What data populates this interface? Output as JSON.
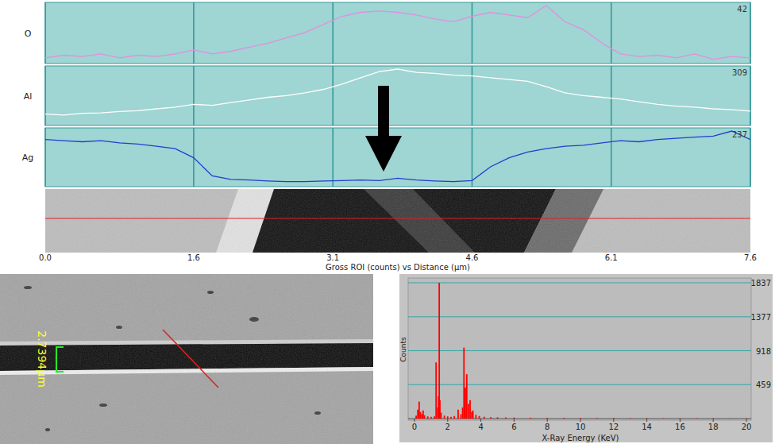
{
  "chart_data": [
    {
      "type": "line",
      "title": "O",
      "color": "#e090e0",
      "x": [
        0,
        0.2,
        0.4,
        0.6,
        0.8,
        1,
        1.2,
        1.4,
        1.6,
        1.8,
        2,
        2.2,
        2.4,
        2.6,
        2.8,
        3,
        3.2,
        3.4,
        3.6,
        3.8,
        4,
        4.2,
        4.4,
        4.6,
        4.8,
        5,
        5.2,
        5.4,
        5.6,
        5.8,
        6,
        6.2,
        6.4,
        6.6,
        6.8,
        7,
        7.2,
        7.4,
        7.6
      ],
      "values": [
        3,
        5,
        4,
        6,
        3,
        5,
        4,
        6,
        9,
        6,
        8,
        11,
        14,
        18,
        22,
        28,
        34,
        37,
        38,
        37,
        35,
        32,
        30,
        34,
        37,
        35,
        33,
        42,
        30,
        24,
        14,
        6,
        4,
        5,
        3,
        6,
        2,
        4,
        3
      ],
      "xlim": [
        0,
        7.6
      ],
      "xticks": [
        {
          "value": 0,
          "label": "0.0"
        },
        1.6,
        3.1,
        4.6,
        6.1,
        7.6
      ],
      "ylim": [
        0,
        42
      ],
      "yticks": [
        42
      ],
      "grid": true,
      "tick_labels": "y"
    },
    {
      "type": "line",
      "title": "Al",
      "color": "#ffffff",
      "x": [
        0,
        0.2,
        0.4,
        0.6,
        0.8,
        1,
        1.2,
        1.4,
        1.6,
        1.8,
        2,
        2.2,
        2.4,
        2.6,
        2.8,
        3,
        3.2,
        3.4,
        3.6,
        3.8,
        4,
        4.2,
        4.4,
        4.6,
        4.8,
        5,
        5.2,
        5.4,
        5.6,
        5.8,
        6,
        6.2,
        6.4,
        6.6,
        6.8,
        7,
        7.2,
        7.4,
        7.6
      ],
      "values": [
        55,
        50,
        60,
        62,
        70,
        75,
        85,
        95,
        110,
        105,
        120,
        135,
        150,
        160,
        175,
        195,
        225,
        260,
        295,
        309,
        290,
        285,
        275,
        270,
        260,
        250,
        240,
        210,
        175,
        160,
        150,
        140,
        125,
        110,
        100,
        95,
        85,
        80,
        72
      ],
      "xlim": [
        0,
        7.6
      ],
      "xticks": [
        {
          "value": 0,
          "label": "0.0"
        },
        1.6,
        3.1,
        4.6,
        6.1,
        7.6
      ],
      "ylim": [
        0,
        309
      ],
      "yticks": [
        309
      ],
      "grid": true,
      "tick_labels": "y"
    },
    {
      "type": "line",
      "title": "Ag",
      "color": "#1f3fcf",
      "x": [
        0,
        0.2,
        0.4,
        0.6,
        0.8,
        1,
        1.2,
        1.4,
        1.6,
        1.8,
        2,
        2.2,
        2.4,
        2.6,
        2.8,
        3,
        3.2,
        3.4,
        3.6,
        3.8,
        4,
        4.2,
        4.4,
        4.6,
        4.8,
        5,
        5.2,
        5.4,
        5.6,
        5.8,
        6,
        6.2,
        6.4,
        6.6,
        6.8,
        7,
        7.2,
        7.4,
        7.6
      ],
      "values": [
        200,
        195,
        190,
        195,
        185,
        180,
        170,
        160,
        120,
        40,
        25,
        22,
        18,
        15,
        15,
        18,
        20,
        22,
        20,
        30,
        22,
        18,
        15,
        20,
        80,
        120,
        145,
        160,
        170,
        175,
        185,
        195,
        190,
        200,
        205,
        210,
        215,
        237,
        200
      ],
      "xlim": [
        0,
        7.6
      ],
      "xticks": [
        {
          "value": 0,
          "label": "0.0"
        },
        1.6,
        3.1,
        4.6,
        6.1,
        7.6
      ],
      "ylim": [
        0,
        237
      ],
      "yticks": [
        237
      ],
      "grid": true,
      "tick_labels": true,
      "x_label": "Gross ROI (counts) vs Distance (µm)"
    },
    {
      "type": "bar",
      "color": "#ff0000",
      "x_label": "X-Ray Energy (KeV)",
      "y_label": "Counts",
      "x": [
        0.1,
        0.2,
        0.28,
        0.36,
        0.45,
        0.52,
        0.6,
        0.8,
        1.0,
        1.2,
        1.3,
        1.4,
        1.45,
        1.49,
        1.53,
        1.6,
        1.8,
        2.0,
        2.2,
        2.4,
        2.63,
        2.8,
        2.9,
        2.98,
        3.06,
        3.15,
        3.25,
        3.35,
        3.45,
        3.52,
        3.7,
        3.9,
        4.2,
        4.6,
        5,
        5.5,
        6,
        7,
        8,
        9,
        10,
        11,
        12,
        13,
        14,
        15,
        16,
        17,
        18,
        19,
        20
      ],
      "values": [
        40,
        120,
        230,
        90,
        60,
        110,
        45,
        30,
        25,
        30,
        760,
        150,
        300,
        1837,
        250,
        80,
        40,
        30,
        25,
        35,
        120,
        60,
        150,
        960,
        420,
        600,
        200,
        250,
        90,
        110,
        50,
        35,
        25,
        20,
        18,
        15,
        14,
        12,
        10,
        10,
        9,
        8,
        8,
        7,
        6,
        6,
        5,
        5,
        4,
        4,
        3
      ],
      "xlim": [
        0,
        20
      ],
      "xticks": [
        0,
        2,
        4,
        6,
        8,
        10,
        12,
        14,
        16,
        18,
        20
      ],
      "ylim": [
        0,
        1837
      ],
      "yticks": [
        459,
        918,
        1377,
        1837
      ],
      "grid": true
    }
  ],
  "micrograph": {
    "scale_label": "2.7394µm"
  }
}
